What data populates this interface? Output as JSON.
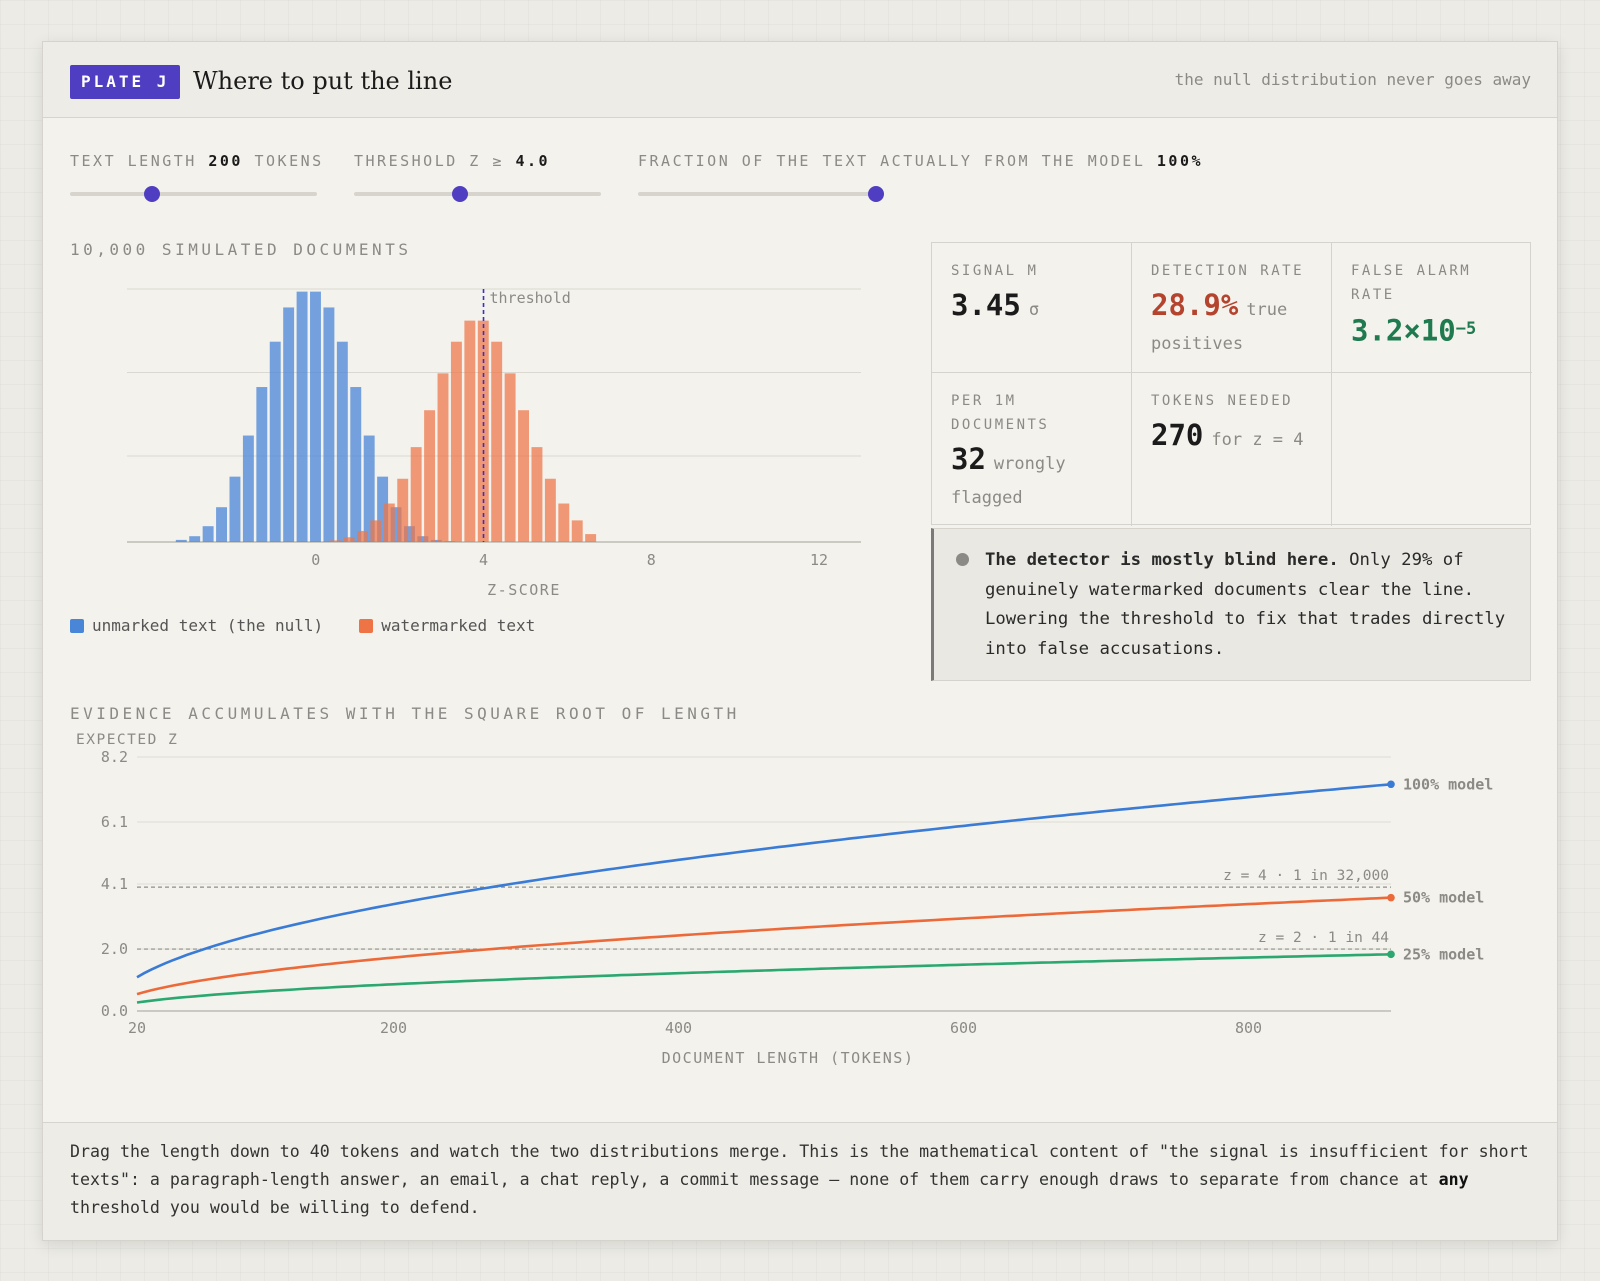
{
  "header": {
    "plate": "PLATE J",
    "title": "Where to put the line",
    "tagline": "the null distribution never goes away"
  },
  "controls": {
    "length": {
      "label": "TEXT LENGTH",
      "value": "200",
      "suffix": "TOKENS",
      "fraction": 0.33
    },
    "threshold": {
      "label": "THRESHOLD Z ≥",
      "value": "4.0",
      "fraction": 0.43
    },
    "fraction": {
      "label": "FRACTION OF THE TEXT ACTUALLY FROM THE MODEL",
      "value": "100%",
      "fraction": 1.0
    }
  },
  "histogram_label": "10,000 SIMULATED DOCUMENTS",
  "legend": {
    "null": "unmarked text (the null)",
    "marked": "watermarked text"
  },
  "stats": {
    "signal": {
      "label": "SIGNAL M",
      "value": "3.45",
      "unit": "σ"
    },
    "detection": {
      "label": "DETECTION RATE",
      "value": "28.9%",
      "unit": "true positives"
    },
    "false_alarm": {
      "label": "FALSE ALARM RATE",
      "value": "3.2×10",
      "exponent": "−5"
    },
    "per_million": {
      "label": "PER 1M DOCUMENTS",
      "value": "32",
      "unit": "wrongly flagged"
    },
    "tokens": {
      "label": "TOKENS NEEDED",
      "value": "270",
      "unit": "for z = 4"
    }
  },
  "callout": {
    "bold": "The detector is mostly blind here.",
    "text": " Only 29% of genuinely watermarked documents clear the line. Lowering the threshold to fix that trades directly into false accusations."
  },
  "curve_section_label": "EVIDENCE ACCUMULATES WITH THE SQUARE ROOT OF LENGTH",
  "footer": {
    "text1": "Drag the length down to 40 tokens and watch the two distributions merge. This is the mathematical content of \"the signal is insufficient for short texts\": a paragraph-length answer, an email, a chat reply, a commit message — none of them carry enough draws to separate from chance at ",
    "bold": "any",
    "text2": " threshold you would be willing to defend."
  },
  "colors": {
    "accent": "#4f3ec1",
    "null": "#4a86d8",
    "marked": "#ee7446",
    "detect": "#b5442f",
    "false_alarm": "#1f7a4f",
    "blue_line": "#3a7bd5",
    "orange_line": "#ec6a3a",
    "green_line": "#2aa870"
  },
  "chart_data": [
    {
      "type": "bar",
      "title": "",
      "xlabel": "Z-SCORE",
      "xlim": [
        -4.5,
        13
      ],
      "xticks": [
        0,
        4,
        8,
        12
      ],
      "bin_width": 0.32,
      "threshold": 4.0,
      "threshold_label": "threshold",
      "series": [
        {
          "name": "unmarked text (the null)",
          "color": "#4a86d8",
          "x": [
            -3.2,
            -2.88,
            -2.56,
            -2.24,
            -1.92,
            -1.6,
            -1.28,
            -0.96,
            -0.64,
            -0.32,
            0.0,
            0.32,
            0.64,
            0.96,
            1.28,
            1.6,
            1.92,
            2.24,
            2.56,
            2.88,
            3.2
          ],
          "values": [
            0.4,
            1.1,
            3.0,
            6.6,
            12.4,
            20.2,
            29.4,
            38.0,
            44.5,
            47.5,
            47.5,
            44.5,
            38.0,
            29.4,
            20.2,
            12.4,
            6.6,
            3.0,
            1.1,
            0.4,
            0.15
          ]
        },
        {
          "name": "watermarked text",
          "color": "#ee7446",
          "x": [
            0.48,
            0.8,
            1.12,
            1.44,
            1.76,
            2.08,
            2.4,
            2.72,
            3.04,
            3.36,
            3.68,
            4.0,
            4.32,
            4.64,
            4.96,
            5.28,
            5.6,
            5.92,
            6.24,
            6.56
          ],
          "values": [
            0.3,
            0.9,
            2.1,
            4.1,
            7.3,
            12.0,
            18.0,
            25.0,
            32.0,
            38.0,
            42.0,
            42.0,
            38.0,
            32.0,
            25.0,
            18.0,
            12.0,
            7.3,
            4.1,
            1.5
          ]
        }
      ],
      "ylim": [
        0,
        48
      ]
    },
    {
      "type": "line",
      "title": "",
      "xlabel": "DOCUMENT LENGTH (TOKENS)",
      "ylabel": "EXPECTED Z",
      "xlim": [
        20,
        900
      ],
      "ylim": [
        0,
        8.2
      ],
      "xticks": [
        20,
        200,
        400,
        600,
        800
      ],
      "yticks": [
        "0.0",
        "2.0",
        "4.1",
        "6.1",
        "8.2"
      ],
      "reference_lines": [
        {
          "y": 4,
          "label": "z = 4 · 1 in 32,000"
        },
        {
          "y": 2,
          "label": "z = 2 · 1 in 44"
        }
      ],
      "series": [
        {
          "name": "100% model",
          "color": "#3a7bd5",
          "coef": 0.244
        },
        {
          "name": "50% model",
          "color": "#ec6a3a",
          "coef": 0.122
        },
        {
          "name": "25% model",
          "color": "#2aa870",
          "coef": 0.061
        }
      ]
    }
  ]
}
